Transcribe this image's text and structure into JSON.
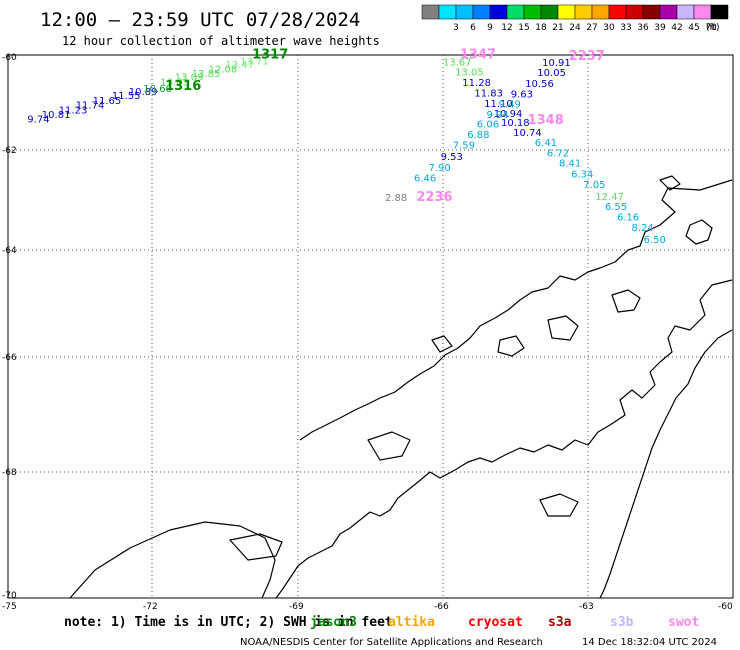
{
  "header": {
    "title": "12:00 – 23:59 UTC 07/28/2024",
    "subtitle": "12 hour collection of altimeter wave heights"
  },
  "colorbar": {
    "unit": "(ft)",
    "bins": [
      {
        "color": "#808080",
        "label": ""
      },
      {
        "color": "#00e5ff",
        "label": "3"
      },
      {
        "color": "#00bfff",
        "label": "6"
      },
      {
        "color": "#0080ff",
        "label": "9"
      },
      {
        "color": "#0000dd",
        "label": "12"
      },
      {
        "color": "#00dd66",
        "label": "15"
      },
      {
        "color": "#00bb00",
        "label": "18"
      },
      {
        "color": "#008800",
        "label": "21"
      },
      {
        "color": "#ffff00",
        "label": "24"
      },
      {
        "color": "#ffcc00",
        "label": "27"
      },
      {
        "color": "#ffa500",
        "label": "30"
      },
      {
        "color": "#ff0000",
        "label": "33"
      },
      {
        "color": "#cc0000",
        "label": "36"
      },
      {
        "color": "#880000",
        "label": "39"
      },
      {
        "color": "#aa00aa",
        "label": "42"
      },
      {
        "color": "#c8b4ff",
        "label": "45"
      },
      {
        "color": "#ff88ee",
        "label": "70"
      },
      {
        "color": "#000000",
        "label": ""
      }
    ]
  },
  "axes": {
    "lat_labels": [
      "-60",
      "-62",
      "-64",
      "-66",
      "-68",
      "-70"
    ],
    "lon_labels": [
      "-75",
      "-72",
      "-69",
      "-66",
      "-63",
      "-60"
    ]
  },
  "observations": [
    {
      "lon": -74.6,
      "lat": -61.42,
      "text": "9.74",
      "color": "#0000cc"
    },
    {
      "lon": -74.3,
      "lat": -61.33,
      "text": "10.81",
      "color": "#0000cc"
    },
    {
      "lon": -73.95,
      "lat": -61.23,
      "text": "11.23",
      "color": "#0000cc"
    },
    {
      "lon": -73.6,
      "lat": -61.13,
      "text": "11.74",
      "color": "#0000cc"
    },
    {
      "lon": -73.25,
      "lat": -61.03,
      "text": "11.65",
      "color": "#0000cc"
    },
    {
      "lon": -72.85,
      "lat": -60.93,
      "text": "11.55",
      "color": "#0000cc"
    },
    {
      "lon": -72.5,
      "lat": -60.84,
      "text": "10.89",
      "color": "#0000cc"
    },
    {
      "lon": -72.2,
      "lat": -60.78,
      "text": "10.60",
      "color": "#009933"
    },
    {
      "lon": -71.85,
      "lat": -60.64,
      "text": "13.03",
      "color": "#55dd55"
    },
    {
      "lon": -71.55,
      "lat": -60.54,
      "text": "13.09",
      "color": "#55dd55"
    },
    {
      "lon": -71.2,
      "lat": -60.46,
      "text": "13.85",
      "color": "#55dd55"
    },
    {
      "lon": -70.85,
      "lat": -60.37,
      "text": "12.08",
      "color": "#55dd55"
    },
    {
      "lon": -70.5,
      "lat": -60.27,
      "text": "13.47",
      "color": "#77ee77"
    },
    {
      "lon": -70.2,
      "lat": -60.2,
      "text": "13.71",
      "color": "#77ee77"
    },
    {
      "lon": -66.0,
      "lat": -60.22,
      "text": "13.67",
      "color": "#55dd55"
    },
    {
      "lon": -65.75,
      "lat": -60.43,
      "text": "13.05",
      "color": "#55dd55"
    },
    {
      "lon": -65.6,
      "lat": -60.65,
      "text": "11.28",
      "color": "#0000cc"
    },
    {
      "lon": -65.35,
      "lat": -60.87,
      "text": "11.83",
      "color": "#0000cc"
    },
    {
      "lon": -65.15,
      "lat": -61.09,
      "text": "11.10",
      "color": "#0000cc"
    },
    {
      "lon": -64.95,
      "lat": -61.31,
      "text": "10.94",
      "color": "#0000cc"
    },
    {
      "lon": -64.8,
      "lat": -61.49,
      "text": "10.18",
      "color": "#0000cc"
    },
    {
      "lon": -64.55,
      "lat": -61.7,
      "text": "10.74",
      "color": "#0000cc"
    },
    {
      "lon": -63.95,
      "lat": -60.23,
      "text": "10.91",
      "color": "#0000cc"
    },
    {
      "lon": -64.05,
      "lat": -60.44,
      "text": "10.05",
      "color": "#0000cc"
    },
    {
      "lon": -64.3,
      "lat": -60.67,
      "text": "10.56",
      "color": "#0000cc"
    },
    {
      "lon": -64.6,
      "lat": -60.89,
      "text": "9.63",
      "color": "#0000cc"
    },
    {
      "lon": -64.85,
      "lat": -61.1,
      "text": "9.49",
      "color": "#0099dd"
    },
    {
      "lon": -65.1,
      "lat": -61.33,
      "text": "9.94",
      "color": "#0099dd"
    },
    {
      "lon": -65.3,
      "lat": -61.53,
      "text": "6.06",
      "color": "#00aadd"
    },
    {
      "lon": -65.5,
      "lat": -61.75,
      "text": "6.88",
      "color": "#00aadd"
    },
    {
      "lon": -65.8,
      "lat": -61.97,
      "text": "7.59",
      "color": "#00aadd"
    },
    {
      "lon": -66.05,
      "lat": -62.2,
      "text": "9.53",
      "color": "#0000cc"
    },
    {
      "lon": -66.3,
      "lat": -62.42,
      "text": "7.90",
      "color": "#00aadd"
    },
    {
      "lon": -66.6,
      "lat": -62.63,
      "text": "6.46",
      "color": "#00aadd"
    },
    {
      "lon": -64.1,
      "lat": -61.92,
      "text": "6.41",
      "color": "#00aadd"
    },
    {
      "lon": -63.85,
      "lat": -62.13,
      "text": "6.72",
      "color": "#00aadd"
    },
    {
      "lon": -63.6,
      "lat": -62.33,
      "text": "8.41",
      "color": "#00aadd"
    },
    {
      "lon": -63.35,
      "lat": -62.55,
      "text": "6.34",
      "color": "#00aadd"
    },
    {
      "lon": -63.1,
      "lat": -62.76,
      "text": "7.05",
      "color": "#00aadd"
    },
    {
      "lon": -62.85,
      "lat": -63.0,
      "text": "12.47",
      "color": "#66dd66"
    },
    {
      "lon": -62.65,
      "lat": -63.2,
      "text": "6.55",
      "color": "#00aadd"
    },
    {
      "lon": -62.4,
      "lat": -63.41,
      "text": "6.16",
      "color": "#00aadd"
    },
    {
      "lon": -62.1,
      "lat": -63.62,
      "text": "8.24",
      "color": "#00aadd"
    },
    {
      "lon": -61.85,
      "lat": -63.86,
      "text": "6.50",
      "color": "#00aadd"
    },
    {
      "lon": -67.2,
      "lat": -63.02,
      "text": "2.88",
      "color": "#808080"
    }
  ],
  "passes": [
    {
      "lon": -69.95,
      "lat": -60.07,
      "text": "1317",
      "color": "#008800"
    },
    {
      "lon": -71.75,
      "lat": -60.74,
      "text": "1316",
      "color": "#008800"
    },
    {
      "lon": -65.65,
      "lat": -60.07,
      "text": "1347",
      "color": "#ff88ee"
    },
    {
      "lon": -63.4,
      "lat": -60.1,
      "text": "2237",
      "color": "#ff88ee"
    },
    {
      "lon": -64.25,
      "lat": -61.45,
      "text": "1348",
      "color": "#ff88ee"
    },
    {
      "lon": -66.55,
      "lat": -63.02,
      "text": "2236",
      "color": "#ff88ee"
    }
  ],
  "footer": {
    "note": "note:  1) Time is in UTC; 2) SWH is in feet",
    "satellites": [
      {
        "name": "jason3",
        "color": "#008800"
      },
      {
        "name": "altika",
        "color": "#ffa500"
      },
      {
        "name": "cryosat",
        "color": "#ff0000"
      },
      {
        "name": "s3a",
        "color": "#aa0000"
      },
      {
        "name": "s3b",
        "color": "#c8b4ff"
      },
      {
        "name": "swot",
        "color": "#ff88ee"
      }
    ],
    "credit": "NOAA/NESDIS Center for Satellite Applications and Research",
    "generated": "14 Dec 18:32:04 UTC 2024"
  }
}
